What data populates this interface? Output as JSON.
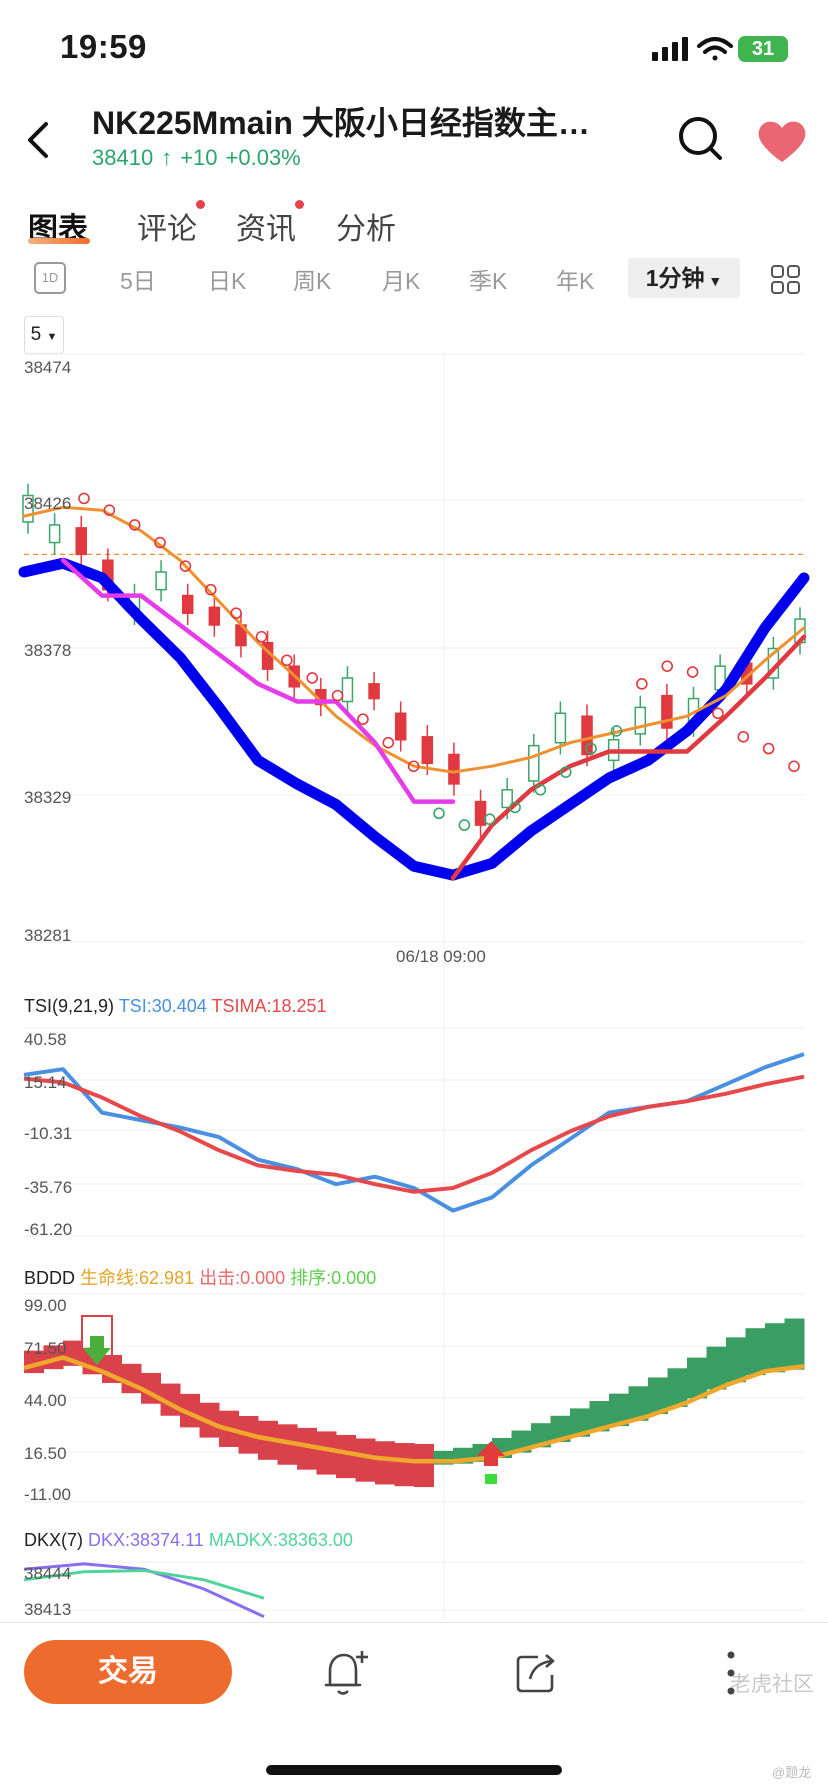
{
  "status_bar": {
    "time": "19:59",
    "battery": "31"
  },
  "header": {
    "title": "NK225Mmain 大阪小日经指数主…",
    "price": "38410",
    "change": "+10",
    "change_pct": "+0.03%",
    "up_color": "#2aa56c"
  },
  "tabs": [
    {
      "label": "图表",
      "active": true,
      "badge": false
    },
    {
      "label": "评论",
      "active": false,
      "badge": true
    },
    {
      "label": "资讯",
      "active": false,
      "badge": true
    },
    {
      "label": "分析",
      "active": false,
      "badge": false
    }
  ],
  "periods": [
    "1D",
    "5日",
    "日K",
    "周K",
    "月K",
    "季K",
    "年K"
  ],
  "period_selected": "1分钟",
  "ma_select": "5",
  "main_chart": {
    "y_ticks": [
      "38474",
      "38426",
      "38378",
      "38329",
      "38281"
    ],
    "x_label": "06/18 09:00",
    "reference_line": 38410
  },
  "tsi": {
    "name": "TSI(9,21,9)",
    "tsi_label": "TSI:30.404",
    "tsima_label": "TSIMA:18.251",
    "y_ticks": [
      "40.58",
      "15.14",
      "-10.31",
      "-35.76",
      "-61.20"
    ],
    "tsi_color": "#4a90e2",
    "tsima_color": "#e6484c"
  },
  "bddd": {
    "name": "BDDD",
    "life_label": "生命线:62.981",
    "strike_label": "出击:0.000",
    "rank_label": "排序:0.000",
    "y_ticks": [
      "99.00",
      "71.50",
      "44.00",
      "16.50",
      "-11.00"
    ]
  },
  "dkx": {
    "name": "DKX(7)",
    "dkx_label": "DKX:38374.11",
    "madkx_label": "MADKX:38363.00",
    "y_ticks": [
      "38444",
      "38413"
    ]
  },
  "bottom_bar": {
    "trade_label": "交易"
  },
  "watermark": "老虎社区",
  "handle": "@题龙",
  "chart_data": [
    {
      "type": "candlestick",
      "title": "",
      "ylim": [
        38281,
        38474
      ],
      "x_label": "06/18 09:00",
      "series": [
        {
          "name": "ma_blue",
          "color": "#0000ee",
          "values": [
            38404,
            38407,
            38402,
            38388,
            38375,
            38358,
            38340,
            38332,
            38325,
            38314,
            38304,
            38301,
            38305,
            38316,
            38325,
            38334,
            38340,
            38350,
            38364,
            38385,
            38402
          ]
        },
        {
          "name": "ma_orange",
          "color": "#f0902e",
          "values": [
            38423,
            38426,
            38425,
            38418,
            38408,
            38394,
            38380,
            38368,
            38355,
            38345,
            38338,
            38336,
            38338,
            38341,
            38346,
            38349,
            38352,
            38355,
            38362,
            38374,
            38385
          ]
        },
        {
          "name": "line_magenta",
          "color": "#e53bea",
          "values": [
            null,
            38408,
            38396,
            38396,
            38386,
            38376,
            38366,
            38360,
            38360,
            38346,
            38326,
            38326,
            null,
            null,
            null,
            null,
            null,
            null,
            null,
            null,
            null
          ]
        },
        {
          "name": "line_red",
          "color": "#e0393f",
          "values": [
            null,
            null,
            null,
            null,
            null,
            null,
            null,
            null,
            null,
            null,
            null,
            38300,
            38318,
            38330,
            38338,
            38343,
            38343,
            38343,
            38355,
            38368,
            38382
          ]
        }
      ],
      "candles_open_close": [
        [
          38421,
          38430
        ],
        [
          38414,
          38420
        ],
        [
          38419,
          38410
        ],
        [
          38408,
          38398
        ],
        [
          38390,
          38396
        ],
        [
          38398,
          38404
        ],
        [
          38396,
          38390
        ],
        [
          38392,
          38386
        ],
        [
          38386,
          38379
        ],
        [
          38380,
          38371
        ],
        [
          38372,
          38365
        ],
        [
          38364,
          38359
        ],
        [
          38360,
          38368
        ],
        [
          38366,
          38361
        ],
        [
          38356,
          38347
        ],
        [
          38348,
          38339
        ],
        [
          38342,
          38332
        ],
        [
          38326,
          38318
        ],
        [
          38324,
          38330
        ],
        [
          38333,
          38345
        ],
        [
          38346,
          38356
        ],
        [
          38355,
          38342
        ],
        [
          38340,
          38347
        ],
        [
          38349,
          38358
        ],
        [
          38362,
          38351
        ],
        [
          38352,
          38361
        ],
        [
          38364,
          38372
        ],
        [
          38373,
          38366
        ],
        [
          38368,
          38378
        ],
        [
          38380,
          38388
        ]
      ],
      "parabolic_sar": [
        38429,
        38425,
        38420,
        38414,
        38406,
        38398,
        38390,
        38382,
        38374,
        38368,
        38362,
        38354,
        38346,
        38338,
        38322,
        38318,
        38320,
        38324,
        38330,
        38336,
        38344,
        38350,
        38366,
        38372,
        38370,
        38356,
        38348,
        38344,
        38338
      ]
    },
    {
      "type": "line",
      "title": "TSI(9,21,9)",
      "ylim": [
        -61.2,
        40.58
      ],
      "series": [
        {
          "name": "TSI",
          "values": [
            20,
            23,
            0,
            -4,
            -8,
            -13,
            -25,
            -30,
            -38,
            -34,
            -40,
            -52,
            -45,
            -28,
            -14,
            0,
            3,
            6,
            15,
            24,
            31
          ]
        },
        {
          "name": "TSIMA",
          "values": [
            18,
            16,
            8,
            -2,
            -10,
            -20,
            -28,
            -31,
            -33,
            -38,
            -42,
            -40,
            -32,
            -20,
            -10,
            -2,
            3,
            6,
            10,
            15,
            19
          ]
        }
      ]
    },
    {
      "type": "area",
      "title": "BDDD",
      "ylim": [
        -11,
        99
      ],
      "series": [
        {
          "name": "生命线",
          "values": [
            62,
            68,
            60,
            50,
            38,
            28,
            22,
            18,
            14,
            10,
            8,
            8,
            10,
            16,
            22,
            28,
            34,
            42,
            52,
            60,
            63
          ]
        },
        {
          "name": "出击",
          "values": [
            0
          ]
        },
        {
          "name": "排序",
          "values": [
            0
          ]
        }
      ]
    },
    {
      "type": "line",
      "title": "DKX(7)",
      "series": [
        {
          "name": "DKX",
          "values": [
            38440,
            38444,
            38440,
            38425,
            38404
          ]
        },
        {
          "name": "MADKX",
          "values": [
            38432,
            38438,
            38439,
            38432,
            38418
          ]
        }
      ]
    }
  ]
}
